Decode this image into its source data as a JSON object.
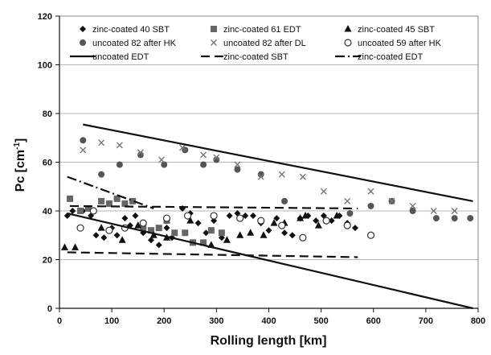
{
  "chart_data": {
    "type": "scatter",
    "title": "",
    "xlabel": "Rolling length [km]",
    "ylabel": {
      "main": "Pc [cm",
      "sup": "-1",
      "end": "]"
    },
    "xlim": [
      0,
      800
    ],
    "ylim": [
      0,
      120
    ],
    "xticks": [
      "0",
      "100",
      "200",
      "300",
      "400",
      "500",
      "600",
      "700",
      "800"
    ],
    "yticks": [
      "0",
      "20",
      "40",
      "60",
      "80",
      "100",
      "120"
    ],
    "grid": "horizontal",
    "legend": "top, inside plot, three columns",
    "series": [
      {
        "name": "zinc-coated 40 SBT",
        "marker": "diamond",
        "color": "#111111",
        "points": [
          [
            15,
            38
          ],
          [
            25,
            40
          ],
          [
            45,
            40
          ],
          [
            60,
            38
          ],
          [
            70,
            30
          ],
          [
            85,
            29
          ],
          [
            100,
            33
          ],
          [
            110,
            30
          ],
          [
            125,
            37
          ],
          [
            135,
            34
          ],
          [
            145,
            38
          ],
          [
            160,
            31
          ],
          [
            175,
            28
          ],
          [
            190,
            26
          ],
          [
            205,
            33
          ],
          [
            215,
            29
          ],
          [
            235,
            41
          ],
          [
            250,
            39
          ],
          [
            265,
            35
          ],
          [
            280,
            31
          ],
          [
            295,
            36
          ],
          [
            310,
            29
          ],
          [
            325,
            38
          ],
          [
            340,
            39
          ],
          [
            355,
            38
          ],
          [
            370,
            38
          ],
          [
            385,
            35
          ],
          [
            400,
            32
          ],
          [
            415,
            37
          ],
          [
            430,
            31
          ],
          [
            445,
            30
          ],
          [
            460,
            37
          ],
          [
            475,
            38
          ],
          [
            490,
            36
          ],
          [
            505,
            38
          ],
          [
            520,
            36
          ],
          [
            535,
            38
          ],
          [
            550,
            35
          ],
          [
            565,
            33
          ]
        ]
      },
      {
        "name": "zinc-coated 61 EDT",
        "marker": "square",
        "color": "#666666",
        "points": [
          [
            20,
            45
          ],
          [
            40,
            40
          ],
          [
            55,
            41
          ],
          [
            80,
            44
          ],
          [
            95,
            43
          ],
          [
            110,
            45
          ],
          [
            125,
            43
          ],
          [
            140,
            44
          ],
          [
            160,
            33
          ],
          [
            175,
            32
          ],
          [
            190,
            33
          ],
          [
            205,
            36
          ],
          [
            220,
            31
          ],
          [
            240,
            31
          ],
          [
            255,
            27
          ],
          [
            275,
            27
          ],
          [
            290,
            32
          ],
          [
            310,
            31
          ]
        ]
      },
      {
        "name": "zinc-coated 45 SBT",
        "marker": "triangle",
        "color": "#111111",
        "points": [
          [
            10,
            25
          ],
          [
            30,
            25
          ],
          [
            80,
            33
          ],
          [
            120,
            28
          ],
          [
            150,
            34
          ],
          [
            180,
            30
          ],
          [
            205,
            29
          ],
          [
            250,
            36
          ],
          [
            290,
            26
          ],
          [
            320,
            28
          ],
          [
            345,
            30
          ],
          [
            365,
            31
          ],
          [
            390,
            30
          ],
          [
            410,
            35
          ],
          [
            430,
            35
          ],
          [
            460,
            37
          ],
          [
            470,
            38
          ],
          [
            495,
            34
          ],
          [
            530,
            38
          ]
        ]
      },
      {
        "name": "uncoated 82 after HK",
        "marker": "circle-filled",
        "color": "#555555",
        "points": [
          [
            45,
            69
          ],
          [
            80,
            55
          ],
          [
            115,
            59
          ],
          [
            155,
            63
          ],
          [
            200,
            59
          ],
          [
            240,
            65
          ],
          [
            275,
            59
          ],
          [
            300,
            61
          ],
          [
            340,
            57
          ],
          [
            385,
            55
          ],
          [
            430,
            44
          ],
          [
            555,
            39
          ],
          [
            595,
            42
          ],
          [
            635,
            44
          ],
          [
            675,
            40
          ],
          [
            720,
            37
          ],
          [
            755,
            37
          ],
          [
            785,
            37
          ]
        ]
      },
      {
        "name": "uncoated 82 after DL",
        "marker": "x",
        "color": "#777777",
        "points": [
          [
            45,
            65
          ],
          [
            80,
            68
          ],
          [
            115,
            67
          ],
          [
            155,
            64
          ],
          [
            195,
            61
          ],
          [
            235,
            66
          ],
          [
            275,
            63
          ],
          [
            300,
            62
          ],
          [
            340,
            59
          ],
          [
            385,
            54
          ],
          [
            425,
            55
          ],
          [
            465,
            54
          ],
          [
            505,
            48
          ],
          [
            550,
            44
          ],
          [
            595,
            48
          ],
          [
            635,
            44
          ],
          [
            675,
            42
          ],
          [
            715,
            40
          ],
          [
            755,
            40
          ]
        ]
      },
      {
        "name": "uncoated 59 after HK",
        "marker": "circle-open",
        "color": "#333333",
        "points": [
          [
            40,
            33
          ],
          [
            65,
            40
          ],
          [
            95,
            32
          ],
          [
            125,
            33
          ],
          [
            160,
            35
          ],
          [
            205,
            37
          ],
          [
            245,
            38
          ],
          [
            295,
            38
          ],
          [
            345,
            37
          ],
          [
            385,
            36
          ],
          [
            425,
            34
          ],
          [
            465,
            29
          ],
          [
            510,
            36
          ],
          [
            550,
            34
          ],
          [
            595,
            30
          ]
        ]
      },
      {
        "name": "uncoated EDT",
        "marker": "line",
        "dash": "solid",
        "color": "#111111",
        "points": [
          [
            45,
            75.5
          ],
          [
            790,
            44
          ]
        ]
      },
      {
        "name": "zinc-coated SBT",
        "marker": "line",
        "dash": "dashed",
        "color": "#111111",
        "points": [
          [
            20,
            42
          ],
          [
            570,
            41
          ]
        ]
      },
      {
        "name": "zinc-coated EDT",
        "marker": "line",
        "dash": "dashdot",
        "color": "#111111",
        "points": [
          [
            15,
            54
          ],
          [
            180,
            41
          ]
        ]
      },
      {
        "name": "",
        "marker": "line",
        "dash": "dashed",
        "color": "#111111",
        "points": [
          [
            15,
            23
          ],
          [
            570,
            21
          ]
        ]
      },
      {
        "name": "",
        "marker": "line",
        "dash": "solid",
        "color": "#111111",
        "points": [
          [
            15,
            39
          ],
          [
            790,
            0
          ]
        ]
      }
    ]
  }
}
